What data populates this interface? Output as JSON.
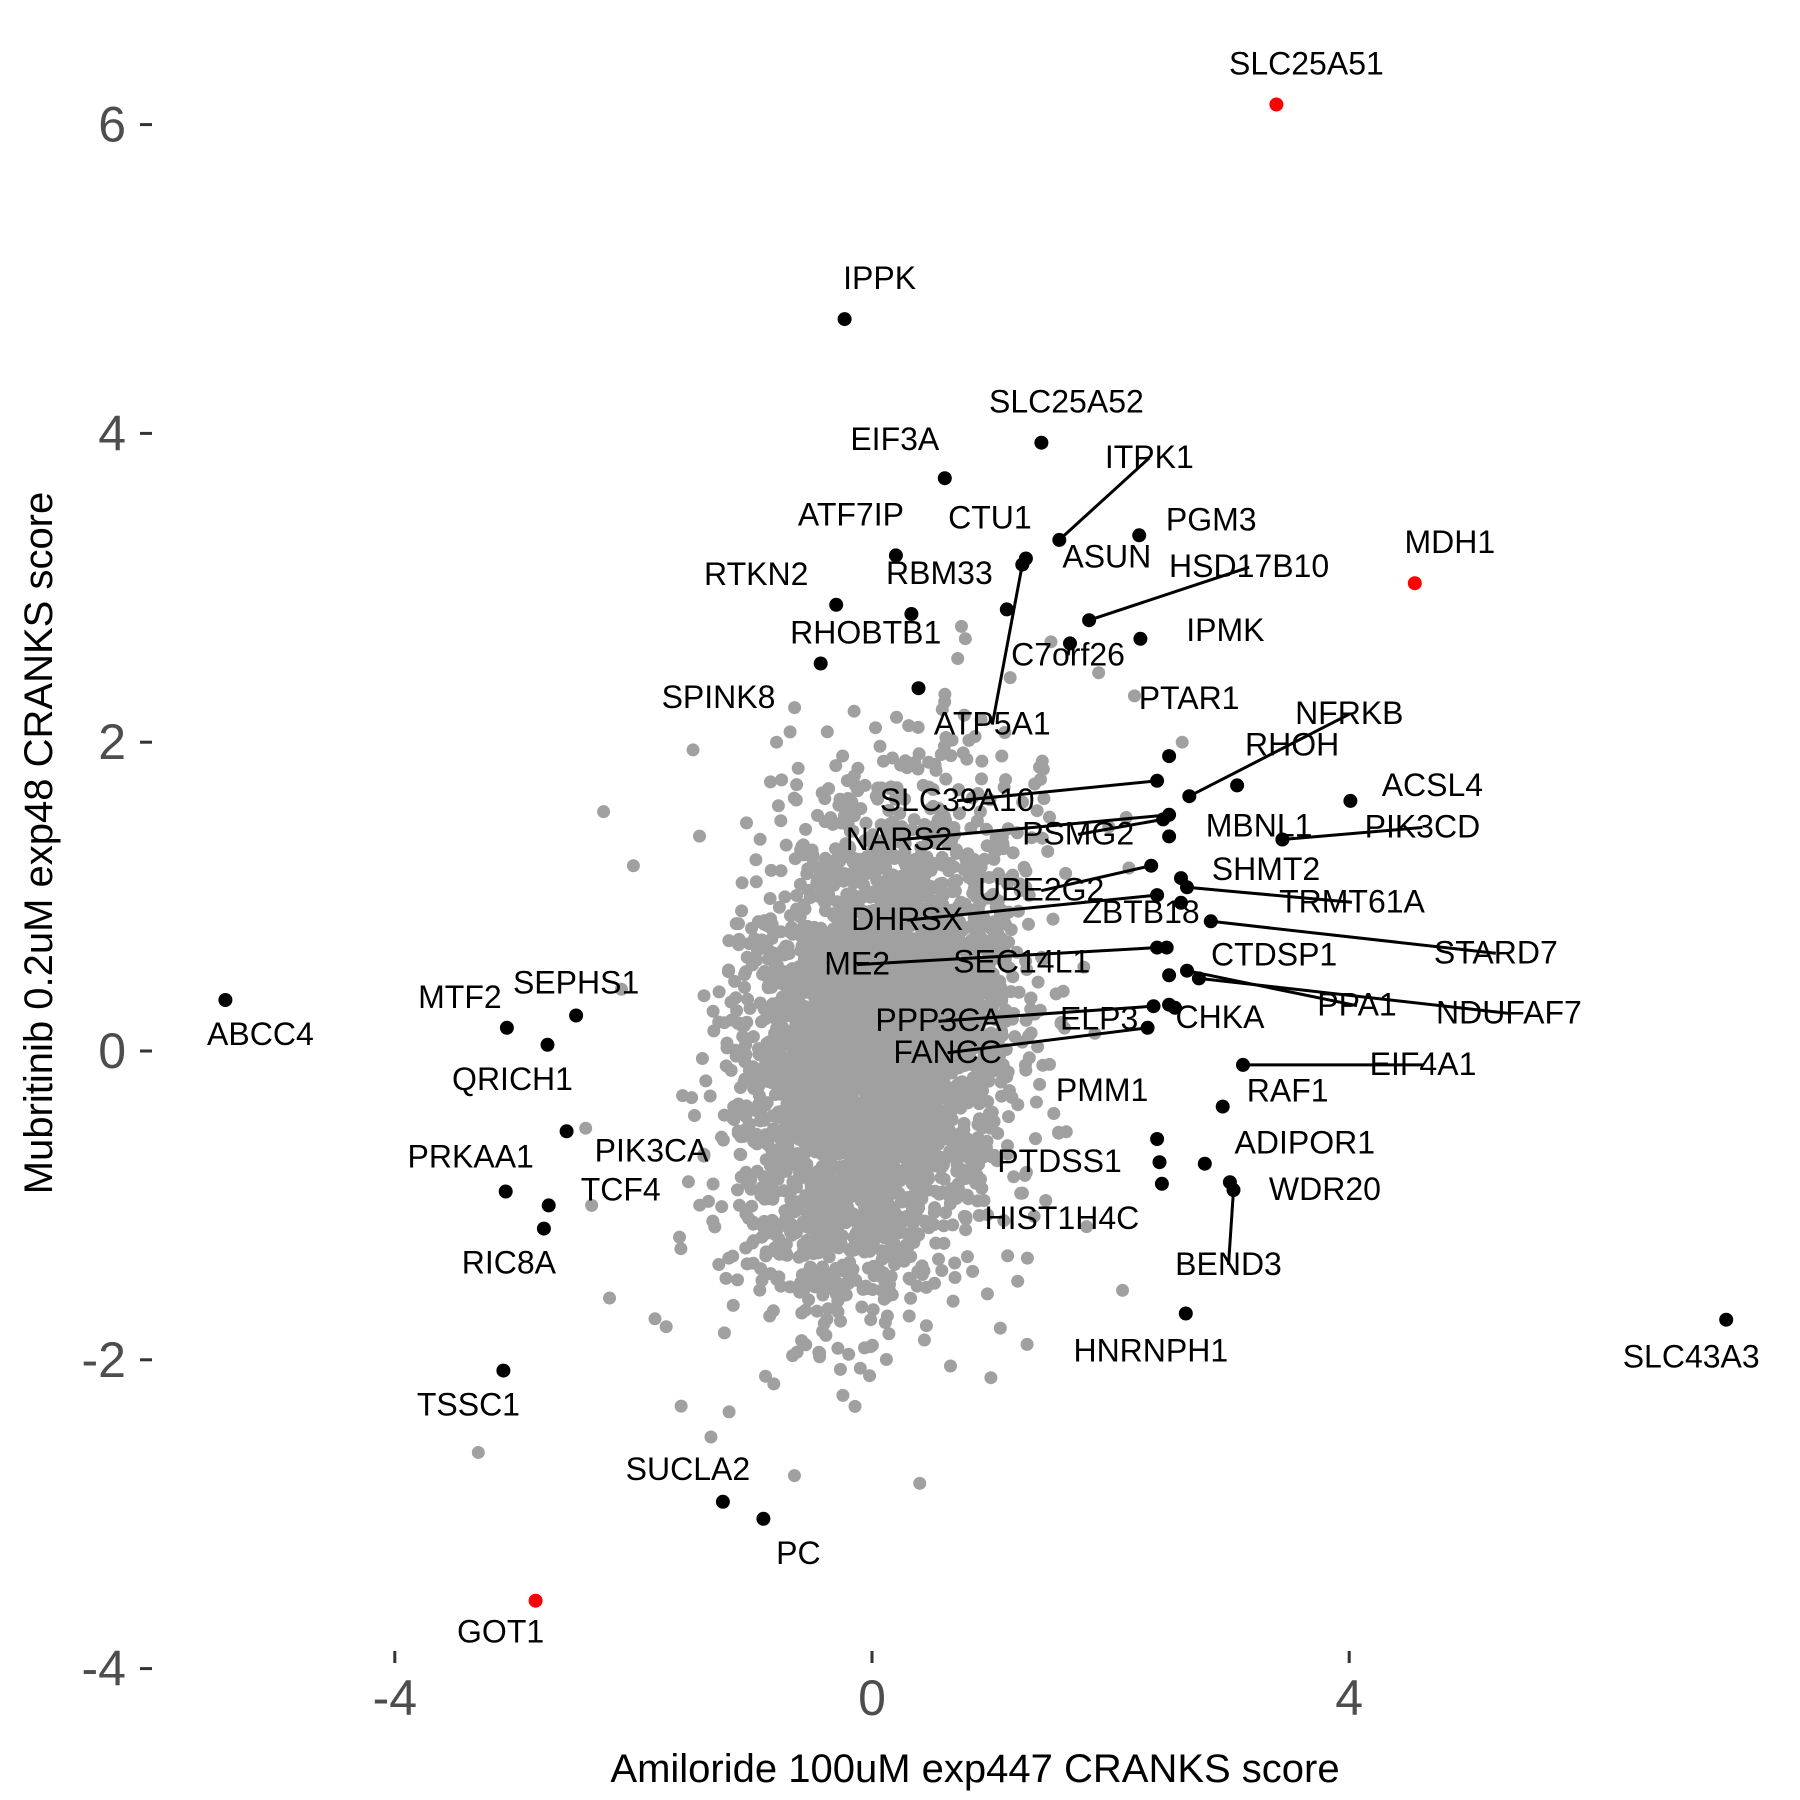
{
  "chart_data": {
    "type": "scatter",
    "title": "",
    "xlabel": "Amiloride 100uM exp447 CRANKS score",
    "ylabel": "Mubritinib 0.2uM exp48 CRANKS score",
    "xlim": [
      -5.2,
      7.8
    ],
    "ylim": [
      -4.0,
      6.7
    ],
    "x_ticks": [
      -4,
      0,
      4
    ],
    "x_tick_labels": [
      "-4",
      "0",
      "4"
    ],
    "y_ticks": [
      -4,
      -2,
      0,
      2,
      4,
      6
    ],
    "y_tick_labels": [
      "-4",
      "-2",
      "0",
      "2",
      "4",
      "6"
    ],
    "grid": false,
    "legend": "none",
    "colors": {
      "background": "#a0a0a0",
      "highlight": "#000000",
      "key": "#ff0000"
    },
    "background_cloud": {
      "description_note": "dense cloud of gray points (all other genes), elliptical, centred near (0,0)",
      "x_range": [
        -2.3,
        2.7
      ],
      "y_range": [
        -2.9,
        2.8
      ]
    },
    "background_outliers": [
      {
        "x": -3.3,
        "y": -2.6
      },
      {
        "x": -2.25,
        "y": 1.55
      },
      {
        "x": -1.5,
        "y": 1.95
      },
      {
        "x": -0.8,
        "y": 2.0
      },
      {
        "x": 0.75,
        "y": 2.75
      },
      {
        "x": 1.5,
        "y": 2.65
      },
      {
        "x": 1.9,
        "y": 2.45
      },
      {
        "x": 2.2,
        "y": 2.3
      },
      {
        "x": 2.6,
        "y": 2.0
      },
      {
        "x": 2.1,
        "y": -1.55
      },
      {
        "x": 1.3,
        "y": -1.9
      },
      {
        "x": 0.4,
        "y": -2.8
      },
      {
        "x": -2.2,
        "y": -1.6
      },
      {
        "x": -2.4,
        "y": -0.5
      },
      {
        "x": -2.1,
        "y": 0.4
      },
      {
        "x": -1.6,
        "y": -2.3
      },
      {
        "x": -0.65,
        "y": -2.75
      },
      {
        "x": -1.35,
        "y": -2.5
      },
      {
        "x": -2.35,
        "y": -1.0
      },
      {
        "x": -2.0,
        "y": 1.2
      }
    ],
    "key_points": [
      {
        "label": "SLC25A51",
        "x": 3.39,
        "y": 6.13
      },
      {
        "label": "MDH1",
        "x": 4.55,
        "y": 3.03
      },
      {
        "label": "GOT1",
        "x": -2.82,
        "y": -3.56
      }
    ],
    "highlighted_points": [
      {
        "label": "IPPK",
        "x": -0.23,
        "y": 4.74
      },
      {
        "label": "SLC25A52",
        "x": 1.42,
        "y": 3.94
      },
      {
        "label": "EIF3A",
        "x": 0.61,
        "y": 3.71
      },
      {
        "label": "ITPK1",
        "x": 1.57,
        "y": 3.31
      },
      {
        "label": "CTU1",
        "x": 1.29,
        "y": 3.19
      },
      {
        "label": "ATF7IP",
        "x": 0.2,
        "y": 3.21
      },
      {
        "label": "PGM3",
        "x": 2.24,
        "y": 3.34
      },
      {
        "label": "RTKN2",
        "x": -0.3,
        "y": 2.89
      },
      {
        "label": "RBM33",
        "x": 0.33,
        "y": 2.83
      },
      {
        "label": "ASUN",
        "x": 1.13,
        "y": 2.86
      },
      {
        "label": "HSD17B10",
        "x": 1.82,
        "y": 2.79
      },
      {
        "label": "RHOBTB1",
        "x": -0.43,
        "y": 2.51
      },
      {
        "label": "IPMK",
        "x": 2.25,
        "y": 2.67
      },
      {
        "label": "C7orf26",
        "x": 1.66,
        "y": 2.64
      },
      {
        "label": "SPINK8",
        "x": 0.39,
        "y": 2.35
      },
      {
        "label": "ATP5A1",
        "x": 1.26,
        "y": 3.15
      },
      {
        "label": "PTAR1",
        "x": 2.49,
        "y": 1.91
      },
      {
        "label": "NFRKB",
        "x": 2.66,
        "y": 1.65
      },
      {
        "label": "RHOH",
        "x": 3.06,
        "y": 1.72
      },
      {
        "label": "ACSL4",
        "x": 4.01,
        "y": 1.62
      },
      {
        "label": "SLC39A10",
        "x": 2.39,
        "y": 1.75
      },
      {
        "label": "PSMG2",
        "x": 2.44,
        "y": 1.5
      },
      {
        "label": "MBNL1",
        "x": 2.49,
        "y": 1.39
      },
      {
        "label": "PIK3CD",
        "x": 3.44,
        "y": 1.37
      },
      {
        "label": "NARS2",
        "x": 2.49,
        "y": 1.53
      },
      {
        "label": "UBE2G2",
        "x": 2.34,
        "y": 1.2
      },
      {
        "label": "SHMT2",
        "x": 2.59,
        "y": 1.12
      },
      {
        "label": "DHRSX",
        "x": 2.39,
        "y": 1.01
      },
      {
        "label": "ZBTB18",
        "x": 2.59,
        "y": 0.96
      },
      {
        "label": "TRMT61A",
        "x": 2.64,
        "y": 1.06
      },
      {
        "label": "STARD7",
        "x": 2.84,
        "y": 0.84
      },
      {
        "label": "ME2",
        "x": 2.39,
        "y": 0.67
      },
      {
        "label": "SEC14L1",
        "x": 2.47,
        "y": 0.67
      },
      {
        "label": "CTDSP1",
        "x": 2.49,
        "y": 0.49
      },
      {
        "label": "PPA1",
        "x": 2.64,
        "y": 0.52
      },
      {
        "label": "NDUFAF7",
        "x": 2.74,
        "y": 0.47
      },
      {
        "label": "PPP3CA",
        "x": 2.36,
        "y": 0.29
      },
      {
        "label": "ELP3",
        "x": 2.49,
        "y": 0.3
      },
      {
        "label": "CHKA",
        "x": 2.54,
        "y": 0.28
      },
      {
        "label": "FANCC",
        "x": 2.31,
        "y": 0.15
      },
      {
        "label": "EIF4A1",
        "x": 3.11,
        "y": -0.09
      },
      {
        "label": "RAF1",
        "x": 2.94,
        "y": -0.36
      },
      {
        "label": "PMM1",
        "x": 2.39,
        "y": -0.57
      },
      {
        "label": "PTDSS1",
        "x": 2.41,
        "y": -0.72
      },
      {
        "label": "ADIPOR1",
        "x": 2.79,
        "y": -0.73
      },
      {
        "label": "HIST1H4C",
        "x": 2.43,
        "y": -0.86
      },
      {
        "label": "WDR20",
        "x": 3.0,
        "y": -0.85
      },
      {
        "label": "BEND3",
        "x": 3.03,
        "y": -0.9
      },
      {
        "label": "HNRNPH1",
        "x": 2.63,
        "y": -1.7
      },
      {
        "label": "SLC43A3",
        "x": 7.16,
        "y": -1.74
      },
      {
        "label": "ABCC4",
        "x": -5.42,
        "y": 0.33
      },
      {
        "label": "MTF2",
        "x": -3.06,
        "y": 0.15
      },
      {
        "label": "SEPHS1",
        "x": -2.48,
        "y": 0.23
      },
      {
        "label": "QRICH1",
        "x": -2.72,
        "y": 0.04
      },
      {
        "label": "PIK3CA",
        "x": -2.56,
        "y": -0.52
      },
      {
        "label": "PRKAA1",
        "x": -3.07,
        "y": -0.91
      },
      {
        "label": "TCF4",
        "x": -2.71,
        "y": -1.0
      },
      {
        "label": "RIC8A",
        "x": -2.75,
        "y": -1.15
      },
      {
        "label": "TSSC1",
        "x": -3.09,
        "y": -2.07
      },
      {
        "label": "SUCLA2",
        "x": -1.25,
        "y": -2.92
      },
      {
        "label": "PC",
        "x": -0.91,
        "y": -3.03
      }
    ]
  }
}
